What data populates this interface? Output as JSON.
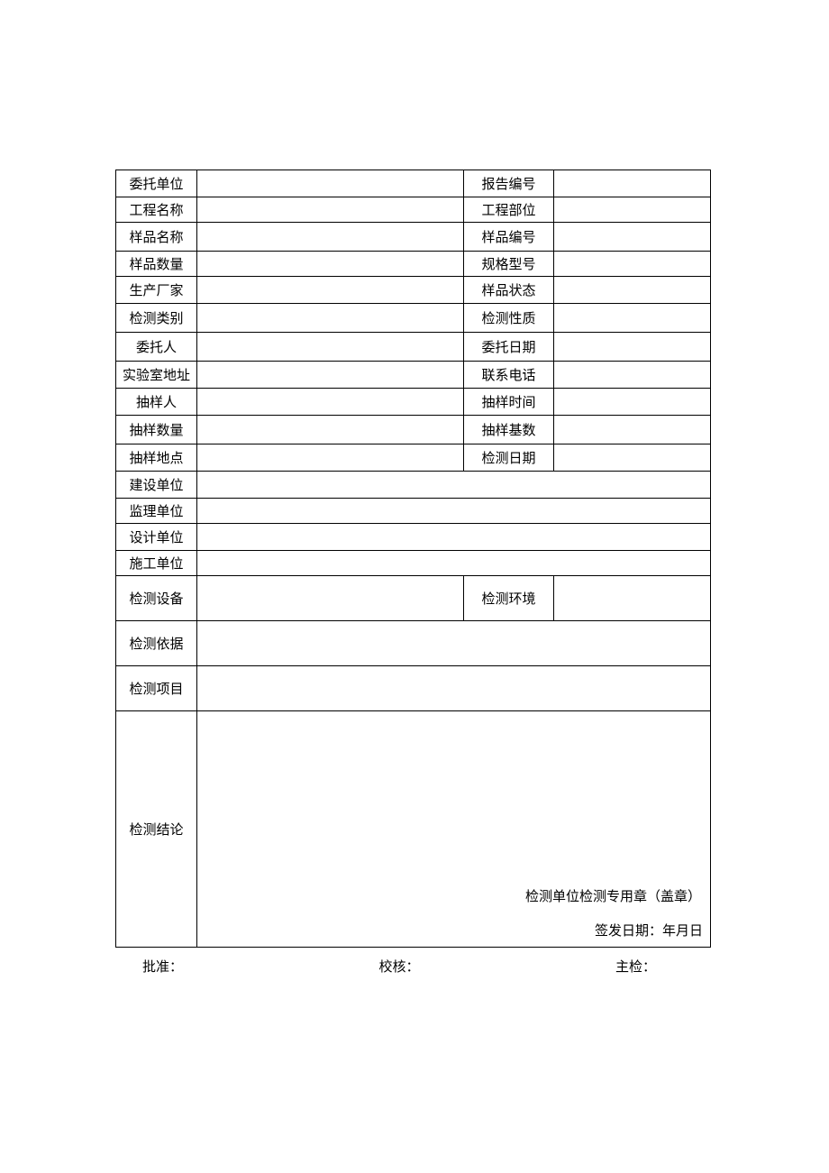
{
  "table": {
    "label_colors": {
      "text": "#000000",
      "border": "#000000"
    },
    "background_color": "#ffffff",
    "font_size": 15,
    "rows_four_col": [
      {
        "left": "委托单位",
        "right": "报告编号",
        "height": "r-normal"
      },
      {
        "left": "工程名称",
        "right": "工程部位",
        "height": "r-small"
      },
      {
        "left": "样品名称",
        "right": "样品编号",
        "height": "r-med"
      },
      {
        "left": "样品数量",
        "right": "规格型号",
        "height": "r-small"
      },
      {
        "left": "生产厂家",
        "right": "样品状态",
        "height": "r-normal"
      },
      {
        "left": "检测类别",
        "right": "检测性质",
        "height": "r-med"
      },
      {
        "left": "委托人",
        "right": "委托日期",
        "height": "r-med"
      },
      {
        "left": "实验室地址",
        "right": "联系电话",
        "height": "r-normal"
      },
      {
        "left": "抽样人",
        "right": "抽样时间",
        "height": "r-normal"
      },
      {
        "left": "抽样数量",
        "right": "抽样基数",
        "height": "r-med"
      },
      {
        "left": "抽样地点",
        "right": "检测日期",
        "height": "r-normal"
      }
    ],
    "rows_two_col": [
      {
        "label": "建设单位",
        "height": "r-normal"
      },
      {
        "label": "监理单位",
        "height": "r-small"
      },
      {
        "label": "设计单位",
        "height": "r-normal"
      },
      {
        "label": "施工单位",
        "height": "r-small"
      }
    ],
    "equipment_row": {
      "left": "检测设备",
      "right": "检测环境",
      "height": "r-large"
    },
    "basis_row": {
      "label": "检测依据",
      "height": "r-large"
    },
    "items_row": {
      "label": "检测项目",
      "height": "r-large"
    },
    "conclusion_row": {
      "label": "检测结论",
      "stamp_text": "检测单位检测专用章（盖章）",
      "date_text": "签发日期：年月日"
    }
  },
  "footer": {
    "approve": "批准：",
    "review": "校核：",
    "inspect": "主检："
  }
}
